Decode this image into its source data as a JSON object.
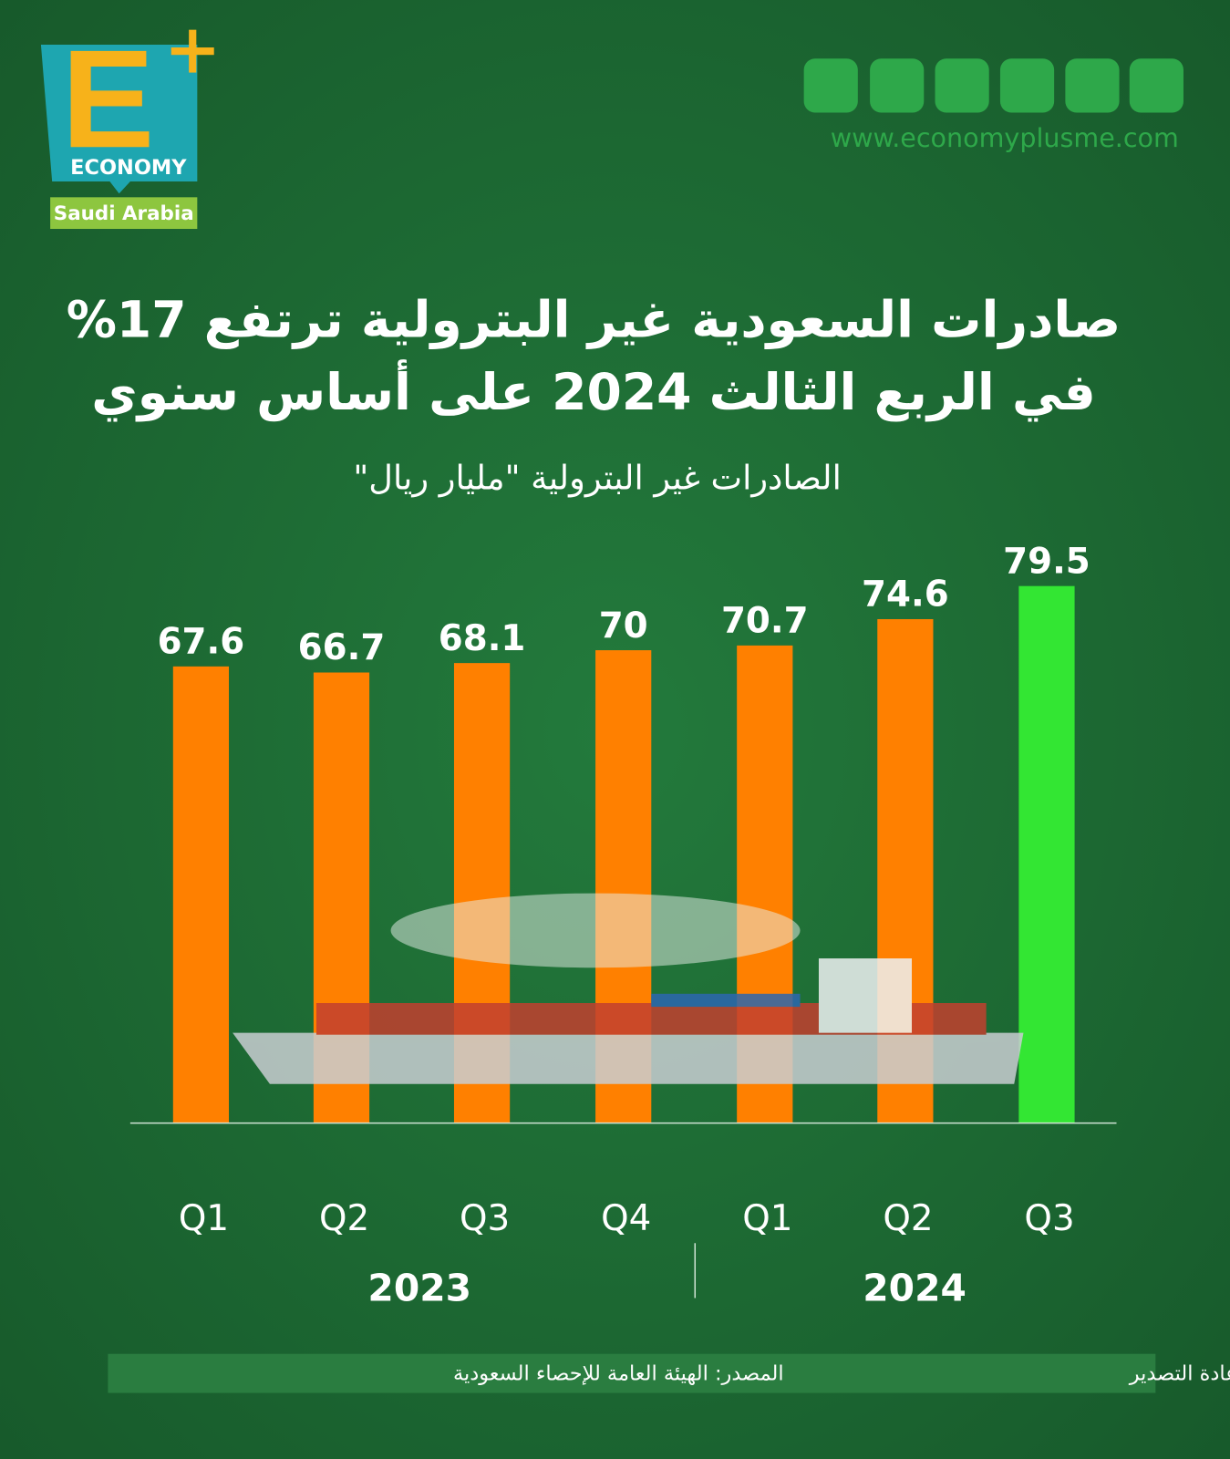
{
  "brand": {
    "name": "ECONOMY",
    "region": "Saudi Arabia",
    "website": "www.economyplusme.com"
  },
  "chart_data": {
    "type": "bar",
    "title": [
      "صادرات السعودية غير البترولية ترتفع 17%",
      "في الربع الثالث 2024 على أساس سنوي"
    ],
    "subtitle": "الصادرات غير البترولية \"مليار ريال\"",
    "categories": [
      "Q1",
      "Q2",
      "Q3",
      "Q4",
      "Q1",
      "Q2",
      "Q3"
    ],
    "years": [
      "2023",
      "2024"
    ],
    "values": [
      67.6,
      66.7,
      68.1,
      70,
      70.7,
      74.6,
      79.5
    ],
    "colors": [
      "#ff8000",
      "#ff8000",
      "#ff8000",
      "#ff8000",
      "#ff8000",
      "#ff8000",
      "#33e633"
    ],
    "source": "المصدر: الهيئة العامة للإحصاء السعودية",
    "note": "ملاحظة: بيانات الصادرات تشمل إعادة التصدير"
  }
}
